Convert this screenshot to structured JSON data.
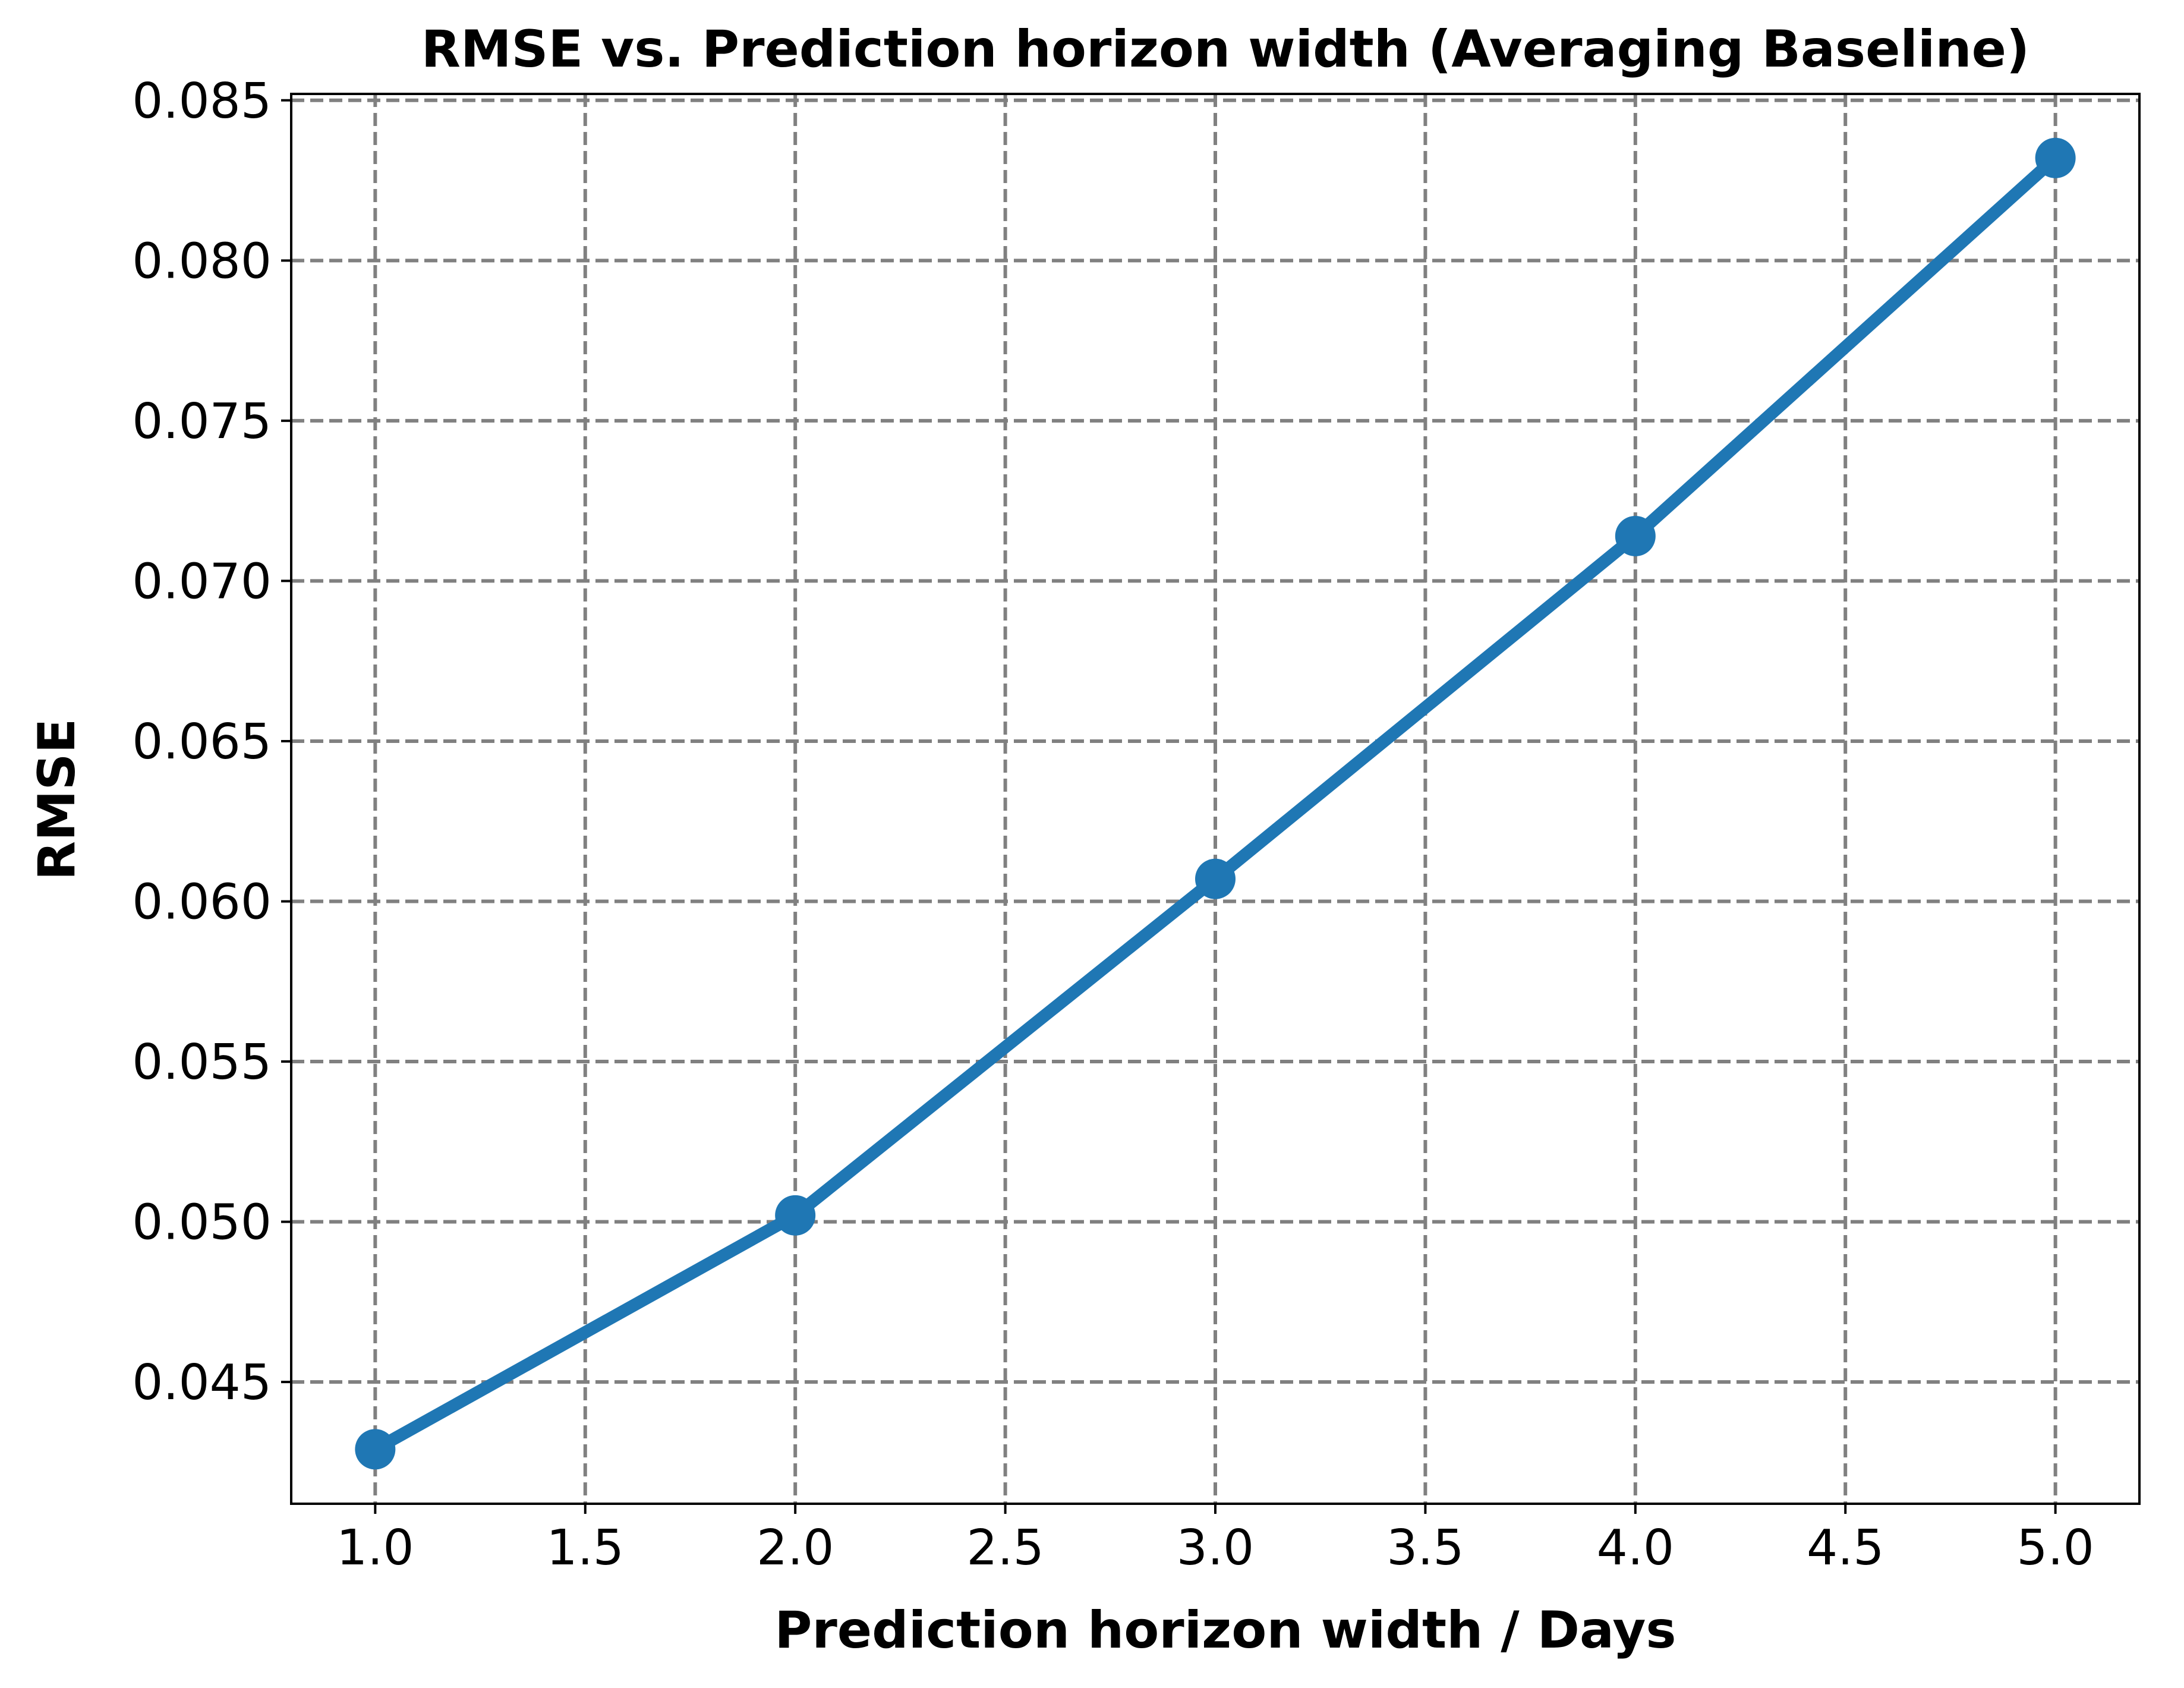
{
  "chart_data": {
    "type": "line",
    "title": "RMSE vs. Prediction horizon width (Averaging Baseline)",
    "xlabel": "Prediction horizon width / Days",
    "ylabel": "RMSE",
    "x": [
      1.0,
      2.0,
      3.0,
      4.0,
      5.0
    ],
    "series": [
      {
        "values": [
          0.0429,
          0.0502,
          0.0607,
          0.0714,
          0.0832
        ],
        "color": "#1f77b4",
        "marker": "circle"
      }
    ],
    "xlim": [
      0.8,
      5.2
    ],
    "ylim": [
      0.0412,
      0.0852
    ],
    "xticks": [
      1.0,
      1.5,
      2.0,
      2.5,
      3.0,
      3.5,
      4.0,
      4.5,
      5.0
    ],
    "xtick_labels": [
      "1.0",
      "1.5",
      "2.0",
      "2.5",
      "3.0",
      "3.5",
      "4.0",
      "4.5",
      "5.0"
    ],
    "yticks": [
      0.045,
      0.05,
      0.055,
      0.06,
      0.065,
      0.07,
      0.075,
      0.08,
      0.085
    ],
    "ytick_labels": [
      "0.045",
      "0.050",
      "0.055",
      "0.060",
      "0.065",
      "0.070",
      "0.075",
      "0.080",
      "0.085"
    ],
    "grid": true,
    "grid_style": "dashed",
    "grid_color": "#808080",
    "legend": false
  }
}
